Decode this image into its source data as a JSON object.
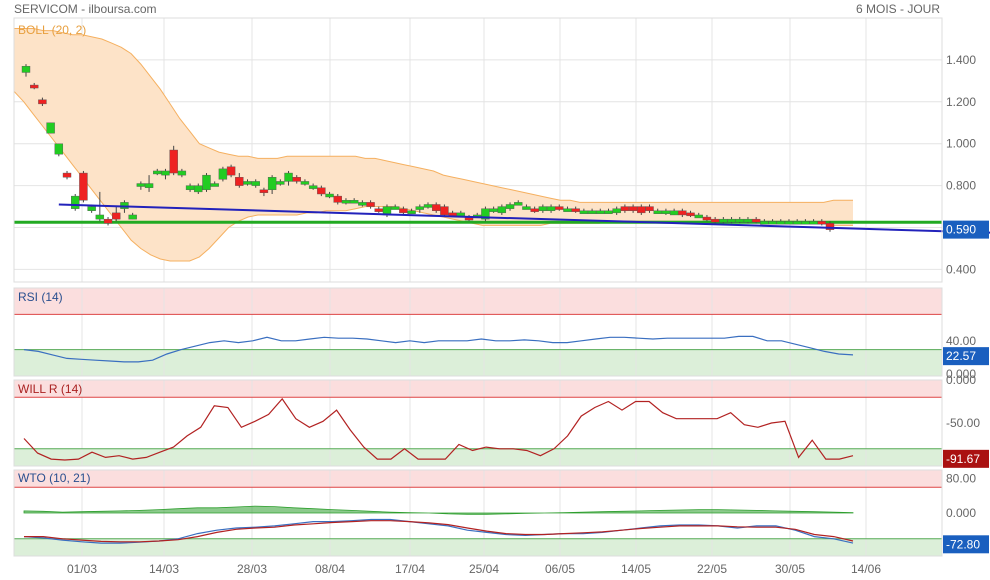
{
  "header": {
    "title": "SERVICOM - ilboursa.com",
    "range": "6 MOIS - JOUR"
  },
  "colors": {
    "up": "#22cc22",
    "down": "#ee2222",
    "band_fill": "#fde3c8",
    "band_line": "#f5b060",
    "support": "#22aa22",
    "trend": "#2222bb",
    "last_price_box": "#1a5fbf",
    "rsi_line": "#3a6fc0",
    "willr_line": "#b22222",
    "willr_box": "#aa1111",
    "wto_wt1": "#3a6fc0",
    "wto_wt2": "#b22222",
    "wto_diff": "#2e9e2e",
    "over_zone": "#fbdede",
    "under_zone": "#dcefd9",
    "grid": "#e4e4e4"
  },
  "chart_data": [
    {
      "type": "candlestick",
      "title": "BOLL (20, 2)",
      "ylim": [
        0.34,
        1.6
      ],
      "yticks": [
        "1.400",
        "1.200",
        "1.000",
        "0.800",
        "0.600",
        "0.400"
      ],
      "last_value": "0.590",
      "support_level": 0.625,
      "trendline": [
        [
          4,
          0.71
        ],
        [
          118,
          0.575
        ]
      ],
      "candles": [
        [
          1.34,
          1.37,
          1.32,
          1.38
        ],
        [
          1.28,
          1.27,
          1.26,
          1.29
        ],
        [
          1.21,
          1.19,
          1.18,
          1.22
        ],
        [
          1.05,
          1.1,
          1.05,
          1.1
        ],
        [
          0.95,
          1.0,
          0.94,
          1.0
        ],
        [
          0.86,
          0.84,
          0.83,
          0.87
        ],
        [
          0.69,
          0.75,
          0.68,
          0.76
        ],
        [
          0.86,
          0.73,
          0.72,
          0.87
        ],
        [
          0.68,
          0.7,
          0.67,
          0.71
        ],
        [
          0.64,
          0.66,
          0.63,
          0.77
        ],
        [
          0.64,
          0.62,
          0.61,
          0.65
        ],
        [
          0.67,
          0.64,
          0.63,
          0.7
        ],
        [
          0.69,
          0.72,
          0.67,
          0.73
        ],
        [
          0.64,
          0.66,
          0.64,
          0.67
        ],
        [
          0.8,
          0.81,
          0.78,
          0.82
        ],
        [
          0.79,
          0.81,
          0.77,
          0.85
        ],
        [
          0.86,
          0.87,
          0.85,
          0.88
        ],
        [
          0.85,
          0.87,
          0.83,
          0.88
        ],
        [
          0.97,
          0.86,
          0.85,
          0.99
        ],
        [
          0.85,
          0.87,
          0.84,
          0.88
        ],
        [
          0.78,
          0.8,
          0.77,
          0.81
        ],
        [
          0.77,
          0.8,
          0.76,
          0.81
        ],
        [
          0.78,
          0.85,
          0.77,
          0.86
        ],
        [
          0.81,
          0.81,
          0.8,
          0.82
        ],
        [
          0.83,
          0.88,
          0.82,
          0.89
        ],
        [
          0.89,
          0.85,
          0.84,
          0.9
        ],
        [
          0.84,
          0.8,
          0.79,
          0.86
        ],
        [
          0.82,
          0.82,
          0.8,
          0.83
        ],
        [
          0.8,
          0.82,
          0.79,
          0.83
        ],
        [
          0.78,
          0.77,
          0.75,
          0.79
        ],
        [
          0.78,
          0.84,
          0.76,
          0.85
        ],
        [
          0.81,
          0.82,
          0.8,
          0.83
        ],
        [
          0.82,
          0.86,
          0.8,
          0.87
        ],
        [
          0.84,
          0.82,
          0.81,
          0.85
        ],
        [
          0.82,
          0.82,
          0.8,
          0.83
        ],
        [
          0.8,
          0.8,
          0.78,
          0.81
        ],
        [
          0.79,
          0.76,
          0.75,
          0.8
        ],
        [
          0.76,
          0.76,
          0.74,
          0.77
        ],
        [
          0.75,
          0.72,
          0.71,
          0.76
        ],
        [
          0.73,
          0.73,
          0.71,
          0.74
        ],
        [
          0.73,
          0.73,
          0.72,
          0.74
        ],
        [
          0.72,
          0.72,
          0.7,
          0.73
        ],
        [
          0.72,
          0.7,
          0.69,
          0.73
        ],
        [
          0.69,
          0.68,
          0.67,
          0.7
        ],
        [
          0.66,
          0.7,
          0.65,
          0.71
        ],
        [
          0.7,
          0.7,
          0.69,
          0.71
        ],
        [
          0.69,
          0.67,
          0.66,
          0.7
        ],
        [
          0.68,
          0.68,
          0.67,
          0.69
        ],
        [
          0.69,
          0.7,
          0.67,
          0.71
        ],
        [
          0.7,
          0.71,
          0.69,
          0.72
        ],
        [
          0.71,
          0.68,
          0.67,
          0.72
        ],
        [
          0.7,
          0.66,
          0.65,
          0.71
        ],
        [
          0.67,
          0.66,
          0.65,
          0.68
        ],
        [
          0.66,
          0.67,
          0.65,
          0.68
        ],
        [
          0.65,
          0.64,
          0.63,
          0.66
        ],
        [
          0.66,
          0.66,
          0.65,
          0.67
        ],
        [
          0.64,
          0.69,
          0.63,
          0.7
        ],
        [
          0.68,
          0.69,
          0.67,
          0.7
        ],
        [
          0.67,
          0.7,
          0.66,
          0.71
        ],
        [
          0.69,
          0.71,
          0.68,
          0.72
        ],
        [
          0.72,
          0.72,
          0.71,
          0.73
        ],
        [
          0.7,
          0.7,
          0.69,
          0.71
        ],
        [
          0.69,
          0.68,
          0.67,
          0.7
        ],
        [
          0.68,
          0.7,
          0.67,
          0.71
        ],
        [
          0.68,
          0.7,
          0.67,
          0.71
        ],
        [
          0.7,
          0.69,
          0.68,
          0.71
        ],
        [
          0.69,
          0.69,
          0.68,
          0.7
        ],
        [
          0.69,
          0.68,
          0.67,
          0.7
        ],
        [
          0.68,
          0.68,
          0.67,
          0.69
        ],
        [
          0.68,
          0.68,
          0.67,
          0.69
        ],
        [
          0.68,
          0.68,
          0.67,
          0.69
        ],
        [
          0.68,
          0.68,
          0.67,
          0.69
        ],
        [
          0.67,
          0.69,
          0.66,
          0.7
        ],
        [
          0.7,
          0.68,
          0.67,
          0.71
        ],
        [
          0.7,
          0.68,
          0.67,
          0.71
        ],
        [
          0.7,
          0.67,
          0.66,
          0.71
        ],
        [
          0.7,
          0.68,
          0.67,
          0.71
        ],
        [
          0.68,
          0.68,
          0.67,
          0.69
        ],
        [
          0.67,
          0.68,
          0.66,
          0.69
        ],
        [
          0.66,
          0.68,
          0.66,
          0.69
        ],
        [
          0.68,
          0.66,
          0.65,
          0.69
        ],
        [
          0.67,
          0.66,
          0.65,
          0.68
        ],
        [
          0.66,
          0.66,
          0.65,
          0.67
        ],
        [
          0.65,
          0.64,
          0.63,
          0.66
        ],
        [
          0.64,
          0.63,
          0.62,
          0.65
        ],
        [
          0.63,
          0.64,
          0.62,
          0.65
        ],
        [
          0.63,
          0.64,
          0.62,
          0.65
        ],
        [
          0.63,
          0.64,
          0.62,
          0.65
        ],
        [
          0.63,
          0.64,
          0.62,
          0.65
        ],
        [
          0.64,
          0.63,
          0.62,
          0.65
        ],
        [
          0.63,
          0.63,
          0.62,
          0.64
        ],
        [
          0.63,
          0.63,
          0.62,
          0.64
        ],
        [
          0.63,
          0.63,
          0.62,
          0.64
        ],
        [
          0.63,
          0.63,
          0.62,
          0.64
        ],
        [
          0.63,
          0.63,
          0.62,
          0.64
        ],
        [
          0.63,
          0.63,
          0.62,
          0.64
        ],
        [
          0.63,
          0.63,
          0.62,
          0.64
        ],
        [
          0.63,
          0.62,
          0.61,
          0.64
        ],
        [
          0.62,
          0.59,
          0.58,
          0.63
        ]
      ],
      "boll_upper": [
        1.55,
        1.55,
        1.55,
        1.54,
        1.54,
        1.53,
        1.52,
        1.52,
        1.51,
        1.5,
        1.48,
        1.46,
        1.43,
        1.38,
        1.32,
        1.26,
        1.19,
        1.12,
        1.06,
        1.0,
        0.98,
        0.96,
        0.95,
        0.94,
        0.94,
        0.93,
        0.93,
        0.93,
        0.94,
        0.94,
        0.94,
        0.94,
        0.94,
        0.94,
        0.94,
        0.94,
        0.93,
        0.93,
        0.92,
        0.91,
        0.9,
        0.89,
        0.88,
        0.87,
        0.85,
        0.84,
        0.83,
        0.82,
        0.81,
        0.8,
        0.79,
        0.78,
        0.77,
        0.76,
        0.75,
        0.74,
        0.73,
        0.73,
        0.72,
        0.72,
        0.72,
        0.72,
        0.72,
        0.72,
        0.72,
        0.72,
        0.72,
        0.72,
        0.72,
        0.72,
        0.72,
        0.72,
        0.72,
        0.72,
        0.72,
        0.72,
        0.72,
        0.72,
        0.72,
        0.72,
        0.72,
        0.72,
        0.72,
        0.72,
        0.73,
        0.73,
        0.73
      ],
      "boll_lower": [
        1.25,
        1.2,
        1.14,
        1.08,
        1.02,
        0.96,
        0.9,
        0.84,
        0.78,
        0.72,
        0.66,
        0.6,
        0.54,
        0.5,
        0.47,
        0.45,
        0.44,
        0.44,
        0.44,
        0.46,
        0.5,
        0.55,
        0.6,
        0.63,
        0.65,
        0.66,
        0.66,
        0.66,
        0.66,
        0.66,
        0.67,
        0.67,
        0.68,
        0.68,
        0.68,
        0.69,
        0.7,
        0.7,
        0.7,
        0.7,
        0.69,
        0.68,
        0.67,
        0.66,
        0.65,
        0.64,
        0.63,
        0.62,
        0.61,
        0.61,
        0.61,
        0.61,
        0.61,
        0.61,
        0.61,
        0.62,
        0.62,
        0.62,
        0.62,
        0.62,
        0.62,
        0.63,
        0.63,
        0.63,
        0.63,
        0.63,
        0.63,
        0.63,
        0.63,
        0.63,
        0.63,
        0.63,
        0.63,
        0.63,
        0.63,
        0.63,
        0.63,
        0.63,
        0.63,
        0.63,
        0.63,
        0.62,
        0.62,
        0.62,
        0.61,
        0.61,
        0.61
      ]
    },
    {
      "type": "line",
      "title": "RSI (14)",
      "ylim": [
        0,
        100
      ],
      "yticks": [
        "40.00",
        "0.000"
      ],
      "overbought": 70,
      "oversold": 30,
      "last_value": "22.57",
      "values": [
        30,
        28,
        24,
        20,
        19,
        18,
        17,
        16,
        16,
        18,
        25,
        30,
        34,
        38,
        40,
        38,
        40,
        44,
        40,
        40,
        42,
        44,
        43,
        43,
        42,
        40,
        38,
        40,
        38,
        40,
        40,
        40,
        42,
        40,
        40,
        41,
        40,
        38,
        38,
        40,
        42,
        44,
        44,
        43,
        42,
        43,
        43,
        43,
        43,
        43,
        45,
        45,
        40,
        40,
        36,
        32,
        28,
        25,
        24
      ]
    },
    {
      "type": "line",
      "title": "WILL R (14)",
      "ylim": [
        -100,
        0
      ],
      "yticks": [
        "0.000",
        "-50.00"
      ],
      "overbought": -20,
      "oversold": -80,
      "last_value": "-91.67",
      "values": [
        -68,
        -85,
        -92,
        -93,
        -92,
        -84,
        -90,
        -88,
        -92,
        -90,
        -84,
        -78,
        -65,
        -55,
        -30,
        -32,
        -55,
        -48,
        -40,
        -22,
        -45,
        -55,
        -48,
        -35,
        -58,
        -78,
        -92,
        -92,
        -80,
        -92,
        -92,
        -92,
        -75,
        -82,
        -78,
        -80,
        -80,
        -82,
        -88,
        -80,
        -65,
        -42,
        -32,
        -25,
        -35,
        -25,
        -25,
        -38,
        -45,
        -45,
        -45,
        -45,
        -38,
        -52,
        -55,
        -50,
        -48,
        -90,
        -70,
        -92,
        -92,
        -88
      ]
    },
    {
      "type": "line",
      "title": "WTO (10, 21)",
      "ylim": [
        -100,
        100
      ],
      "yticks": [
        "80.00",
        "0.000"
      ],
      "overbought": 60,
      "oversold": -60,
      "last_value": "-72.80",
      "series": [
        {
          "values": [
            -55,
            -58,
            -63,
            -67,
            -70,
            -70,
            -68,
            -65,
            -60,
            -48,
            -40,
            -35,
            -33,
            -30,
            -25,
            -20,
            -20,
            -18,
            -15,
            -15,
            -20,
            -25,
            -30,
            -40,
            -45,
            -50,
            -52,
            -50,
            -48,
            -48,
            -45,
            -40,
            -35,
            -30,
            -28,
            -28,
            -30,
            -35,
            -30,
            -30,
            -40,
            -55,
            -60,
            -70
          ]
        },
        {
          "values": [
            -55,
            -55,
            -60,
            -63,
            -66,
            -67,
            -67,
            -65,
            -62,
            -55,
            -45,
            -38,
            -35,
            -33,
            -28,
            -25,
            -22,
            -20,
            -18,
            -18,
            -20,
            -23,
            -27,
            -35,
            -42,
            -48,
            -50,
            -50,
            -48,
            -46,
            -44,
            -40,
            -36,
            -33,
            -30,
            -30,
            -30,
            -32,
            -33,
            -33,
            -38,
            -50,
            -55,
            -65
          ]
        },
        {
          "values": [
            5,
            4,
            2,
            3,
            4,
            5,
            6,
            8,
            10,
            12,
            12,
            14,
            16,
            15,
            12,
            10,
            8,
            6,
            4,
            2,
            1,
            0,
            -2,
            -3,
            -3,
            -2,
            -1,
            0,
            1,
            2,
            3,
            4,
            5,
            6,
            7,
            8,
            8,
            7,
            6,
            5,
            4,
            3,
            2,
            1
          ]
        }
      ]
    }
  ],
  "x_axis": {
    "labels": [
      "01/03",
      "14/03",
      "28/03",
      "08/04",
      "17/04",
      "25/04",
      "06/05",
      "14/05",
      "22/05",
      "30/05",
      "14/06"
    ]
  }
}
